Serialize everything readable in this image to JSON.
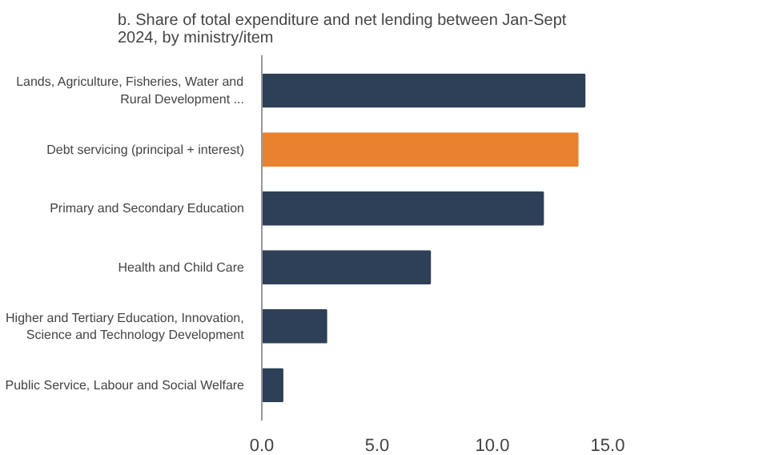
{
  "chart_data": {
    "type": "bar",
    "orientation": "horizontal",
    "title": "b. Share of total expenditure and net lending between Jan-Sept 2024, by ministry/item",
    "categories": [
      "Lands, Agriculture, Fisheries, Water and Rural Development ...",
      "Debt servicing (principal + interest)",
      "Primary and Secondary Education",
      "Health and Child Care",
      "Higher and Tertiary Education, Innovation, Science and Technology Development",
      "Public Service, Labour and Social Welfare"
    ],
    "values": [
      14.0,
      13.7,
      12.2,
      7.3,
      2.8,
      0.9
    ],
    "colors": [
      "#2e4057",
      "#e8822e",
      "#2e4057",
      "#2e4057",
      "#2e4057",
      "#2e4057"
    ],
    "xlim": [
      0,
      15
    ],
    "xticks": [
      {
        "value": 0,
        "label": "0.0"
      },
      {
        "value": 5,
        "label": "5.0"
      },
      {
        "value": 10,
        "label": "10.0"
      },
      {
        "value": 15,
        "label": "15.0"
      }
    ],
    "grid": false
  }
}
